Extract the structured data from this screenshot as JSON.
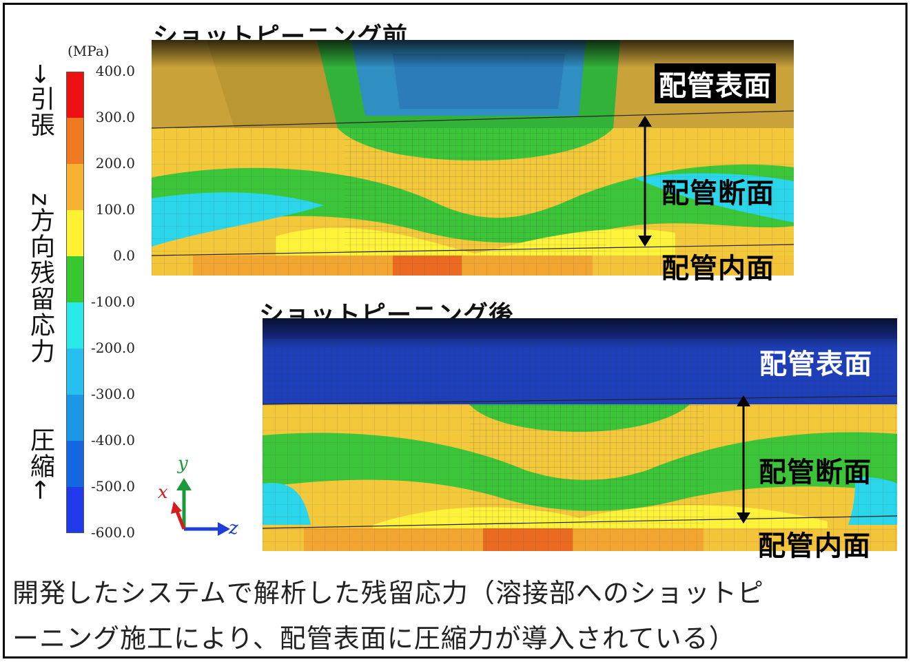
{
  "colorbar": {
    "unit": "(MPa)",
    "ticks": [
      "400.0",
      "300.0",
      "200.0",
      "100.0",
      "0.0",
      "-100.0",
      "-200.0",
      "-300.0",
      "-400.0",
      "-500.0",
      "-600.0"
    ],
    "colors": [
      "#ee1111",
      "#f07a20",
      "#f6b230",
      "#fff232",
      "#36c82e",
      "#28e8e8",
      "#27bfee",
      "#1b97e6",
      "#1467e0",
      "#2039ea"
    ]
  },
  "vertical_label": {
    "top": "→引張",
    "middle": "z方向残留応力",
    "bottom": "圧縮←"
  },
  "panel_before": {
    "title": "ショットピーニング前",
    "label_surface": "配管表面",
    "label_section": "配管断面",
    "label_inner": "配管内面"
  },
  "panel_after": {
    "title": "ショットピーニング後",
    "label_surface": "配管表面",
    "label_section": "配管断面",
    "label_inner": "配管内面"
  },
  "axes": {
    "x": "x",
    "y": "y",
    "z": "z"
  },
  "caption": {
    "line1": "開発したシステムで解析した残留応力（溶接部へのショットピ",
    "line2": "ーニング施工により、配管表面に圧縮力が導入されている）"
  }
}
